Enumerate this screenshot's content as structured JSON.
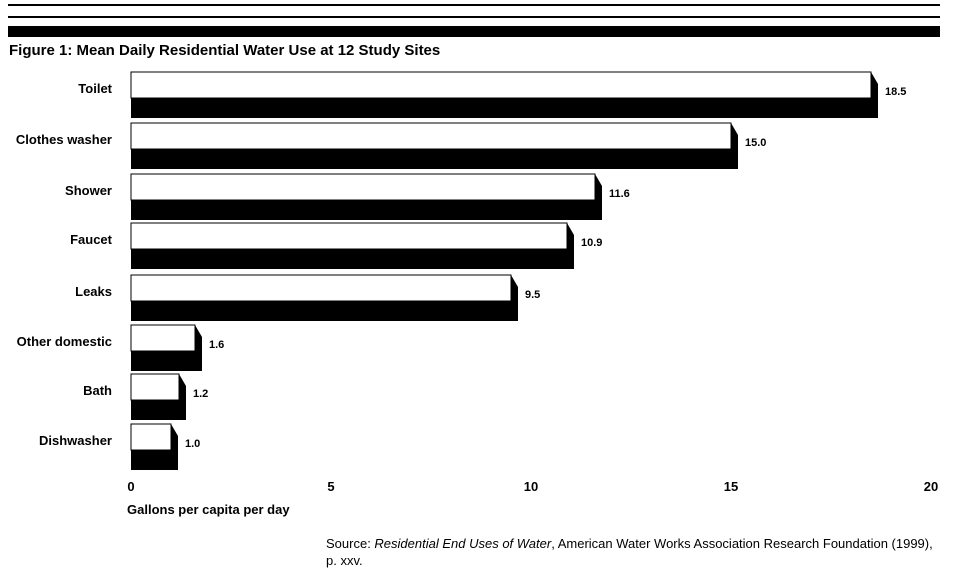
{
  "title": "Figure 1:  Mean Daily Residential Water Use at 12 Study Sites",
  "source": {
    "prefix": "Source: ",
    "title": "Residential End Uses of Water",
    "rest": ", American Water Works Association Research Foundation (1999), p. xxv."
  },
  "chart_data": {
    "type": "bar",
    "orientation": "horizontal",
    "title": "Figure 1:  Mean Daily Residential Water Use at 12 Study Sites",
    "categories": [
      "Toilet",
      "Clothes washer",
      "Shower",
      "Faucet",
      "Leaks",
      "Other domestic",
      "Bath",
      "Dishwasher"
    ],
    "values": [
      18.5,
      15.0,
      11.6,
      10.9,
      9.5,
      1.6,
      1.2,
      1.0
    ],
    "value_labels": [
      "18.5",
      "15.0",
      "11.6",
      "10.9",
      "9.5",
      "1.6",
      "1.2",
      "1.0"
    ],
    "xlabel": "Gallons per capita per day",
    "ylabel": "",
    "xlim": [
      0,
      20
    ],
    "xticks": [
      0,
      5,
      10,
      15,
      20
    ],
    "grid": false,
    "legend": "none"
  }
}
